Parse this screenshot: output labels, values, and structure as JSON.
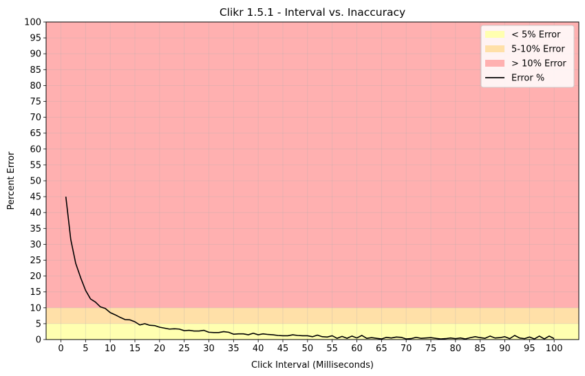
{
  "chart_data": {
    "type": "line",
    "title": "Clikr 1.5.1 - Interval vs. Inaccuracy",
    "xlabel": "Click Interval (Milliseconds)",
    "ylabel": "Percent Error",
    "xlim": [
      -3,
      105
    ],
    "ylim": [
      0,
      100
    ],
    "xticks": [
      0,
      5,
      10,
      15,
      20,
      25,
      30,
      35,
      40,
      45,
      50,
      55,
      60,
      65,
      70,
      75,
      80,
      85,
      90,
      95,
      100
    ],
    "yticks": [
      0,
      5,
      10,
      15,
      20,
      25,
      30,
      35,
      40,
      45,
      50,
      55,
      60,
      65,
      70,
      75,
      80,
      85,
      90,
      95,
      100
    ],
    "grid": true,
    "legend_position": "top-right",
    "bands": [
      {
        "name": "< 5% Error",
        "from": 0,
        "to": 5,
        "color": "#ffffb0"
      },
      {
        "name": "5-10% Error",
        "from": 5,
        "to": 10,
        "color": "#ffe0a8"
      },
      {
        "name": "> 10% Error",
        "from": 10,
        "to": 100,
        "color": "#ffb0b0"
      }
    ],
    "series": [
      {
        "name": "Error %",
        "color": "#000000",
        "x": [
          1,
          2,
          3,
          4,
          5,
          6,
          7,
          8,
          9,
          10,
          11,
          12,
          13,
          14,
          15,
          16,
          17,
          18,
          19,
          20,
          21,
          22,
          23,
          24,
          25,
          26,
          27,
          28,
          29,
          30,
          31,
          32,
          33,
          34,
          35,
          36,
          37,
          38,
          39,
          40,
          41,
          42,
          43,
          44,
          45,
          46,
          47,
          48,
          49,
          50,
          51,
          52,
          53,
          54,
          55,
          56,
          57,
          58,
          59,
          60,
          61,
          62,
          63,
          64,
          65,
          66,
          67,
          68,
          69,
          70,
          71,
          72,
          73,
          74,
          75,
          76,
          77,
          78,
          79,
          80,
          81,
          82,
          83,
          84,
          85,
          86,
          87,
          88,
          89,
          90,
          91,
          92,
          93,
          94,
          95,
          96,
          97,
          98,
          99,
          100
        ],
        "y": [
          45,
          31.5,
          24,
          19.5,
          15.5,
          12.8,
          11.8,
          10.3,
          9.8,
          8.5,
          7.8,
          7,
          6.3,
          6.2,
          5.6,
          4.6,
          5,
          4.5,
          4.4,
          3.9,
          3.6,
          3.3,
          3.4,
          3.3,
          2.8,
          2.9,
          2.7,
          2.7,
          2.9,
          2.3,
          2.2,
          2.2,
          2.5,
          2.3,
          1.7,
          1.8,
          1.8,
          1.5,
          2,
          1.5,
          1.8,
          1.6,
          1.5,
          1.3,
          1.2,
          1.2,
          1.5,
          1.3,
          1.2,
          1.2,
          0.9,
          1.4,
          0.9,
          0.8,
          1.2,
          0.4,
          1,
          0.4,
          1.1,
          0.5,
          1.3,
          0.4,
          0.6,
          0.4,
          0.2,
          0.7,
          0.5,
          0.8,
          0.7,
          0.2,
          0.3,
          0.7,
          0.4,
          0.5,
          0.6,
          0.4,
          0.2,
          0.3,
          0.5,
          0.3,
          0.5,
          0.2,
          0.6,
          0.9,
          0.6,
          0.4,
          1.1,
          0.5,
          0.6,
          0.9,
          0.3,
          1.3,
          0.5,
          0.3,
          0.8,
          0.2,
          1.1,
          0.2,
          1.1,
          0.3
        ]
      }
    ]
  }
}
